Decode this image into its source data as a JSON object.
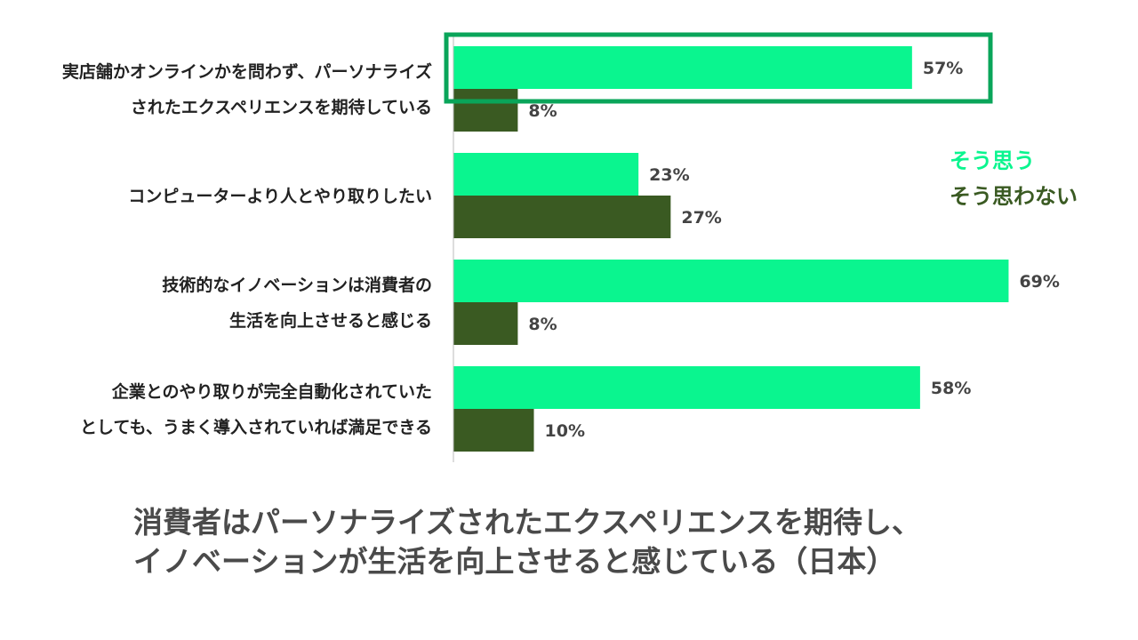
{
  "chart_data": {
    "type": "bar",
    "orientation": "horizontal",
    "categories": [
      [
        "実店舗かオンラインかを問わず、パーソナライズ",
        "されたエクスペリエンスを期待している"
      ],
      [
        "コンピューターより人とやり取りしたい"
      ],
      [
        "技術的なイノベーションは消費者の",
        "生活を向上させると感じる"
      ],
      [
        "企業とのやり取りが完全自動化されていた",
        "としても、うまく導入されていれば満足できる"
      ]
    ],
    "series": [
      {
        "name": "そう思う",
        "values": [
          57,
          23,
          69,
          58
        ],
        "color": "#0af58f"
      },
      {
        "name": "そう思わない",
        "values": [
          8,
          27,
          8,
          10
        ],
        "color": "#3a5a22"
      }
    ],
    "value_suffix": "%",
    "xlim": [
      0,
      100
    ],
    "legend_position": "right",
    "highlight_category_index": 0,
    "highlight_color": "#0aa55a"
  },
  "caption": {
    "line1": "消費者はパーソナライズされたエクスペリエンスを期待し、",
    "line2": "イノベーションが生活を向上させると感じている（日本）"
  }
}
